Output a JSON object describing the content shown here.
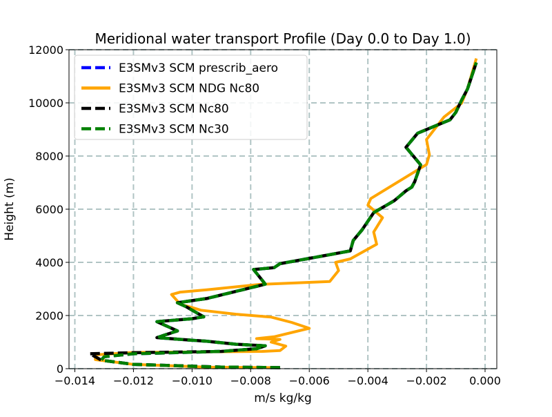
{
  "chart_data": {
    "type": "line",
    "title": "Meridional water transport Profile (Day 0.0 to Day 1.0)",
    "xlabel": "m/s kg/kg",
    "ylabel": "Height (m)",
    "xlim": [
      -0.0142,
      0.0004
    ],
    "ylim": [
      0,
      12000
    ],
    "xticks": [
      -0.014,
      -0.012,
      -0.01,
      -0.008,
      -0.006,
      -0.004,
      -0.002,
      0.0
    ],
    "xtick_labels": [
      "−0.014",
      "−0.012",
      "−0.010",
      "−0.008",
      "−0.006",
      "−0.004",
      "−0.002",
      "0.000"
    ],
    "yticks": [
      0,
      2000,
      4000,
      6000,
      8000,
      10000,
      12000
    ],
    "ytick_labels": [
      "0",
      "2000",
      "4000",
      "6000",
      "8000",
      "10000",
      "12000"
    ],
    "grid": true,
    "legend_position": "top-left",
    "series": [
      {
        "name": "E3SMv3 SCM prescrib_aero",
        "color": "#0000ff",
        "style": "dashed",
        "x": [
          -0.007,
          -0.009,
          -0.012,
          -0.0131,
          -0.013,
          -0.012,
          -0.009,
          -0.0078,
          -0.0075,
          -0.0085,
          -0.0095,
          -0.0105,
          -0.0112,
          -0.0105,
          -0.0112,
          -0.01,
          -0.0096,
          -0.0102,
          -0.0105,
          -0.0095,
          -0.0075,
          -0.0079,
          -0.0072,
          -0.007,
          -0.0055,
          -0.0046,
          -0.0045,
          -0.0042,
          -0.0038,
          -0.0031,
          -0.0027,
          -0.0025,
          -0.0024,
          -0.0022,
          -0.0027,
          -0.0023,
          -0.0012,
          -0.001,
          -0.0008,
          -0.0006,
          -0.0003
        ],
        "y": [
          40,
          60,
          160,
          320,
          450,
          560,
          650,
          750,
          860,
          920,
          1030,
          1110,
          1170,
          1420,
          1770,
          1880,
          1950,
          2330,
          2480,
          2640,
          3180,
          3730,
          3800,
          3950,
          4250,
          4430,
          4820,
          5220,
          5870,
          6320,
          6690,
          6830,
          7040,
          7670,
          8330,
          8860,
          9360,
          9640,
          10100,
          10520,
          11520
        ]
      },
      {
        "name": "E3SMv3 SCM NDG Nc80",
        "color": "#ffa500",
        "style": "solid",
        "x": [
          -0.007,
          -0.0095,
          -0.012,
          -0.0133,
          -0.0133,
          -0.012,
          -0.0076,
          -0.007,
          -0.0068,
          -0.0073,
          -0.007,
          -0.0078,
          -0.0072,
          -0.006,
          -0.0066,
          -0.0073,
          -0.0085,
          -0.0097,
          -0.01,
          -0.0104,
          -0.0107,
          -0.0104,
          -0.0095,
          -0.0077,
          -0.0053,
          -0.005,
          -0.0051,
          -0.0046,
          -0.0037,
          -0.0038,
          -0.0035,
          -0.004,
          -0.0039,
          -0.002,
          -0.0019,
          -0.002,
          -0.0014,
          -0.0008,
          -0.0006,
          -0.0003
        ],
        "y": [
          40,
          60,
          160,
          340,
          520,
          610,
          650,
          680,
          850,
          1000,
          1100,
          1130,
          1200,
          1520,
          1740,
          1940,
          2050,
          2200,
          2300,
          2420,
          2790,
          2880,
          2970,
          3170,
          3280,
          3690,
          4000,
          4130,
          4680,
          5140,
          5680,
          6150,
          6400,
          7680,
          8050,
          8620,
          9470,
          9990,
          10530,
          11670
        ]
      },
      {
        "name": "E3SMv3 SCM Nc80",
        "color": "#000000",
        "style": "dashed",
        "x": [
          -0.007,
          -0.009,
          -0.012,
          -0.0131,
          -0.0133,
          -0.0135,
          -0.012,
          -0.009,
          -0.0078,
          -0.0075,
          -0.0085,
          -0.0095,
          -0.0105,
          -0.0112,
          -0.0105,
          -0.0112,
          -0.01,
          -0.0096,
          -0.0102,
          -0.0105,
          -0.0095,
          -0.0075,
          -0.0079,
          -0.0072,
          -0.007,
          -0.0055,
          -0.0046,
          -0.0045,
          -0.0042,
          -0.0038,
          -0.0031,
          -0.0027,
          -0.0025,
          -0.0024,
          -0.0022,
          -0.0027,
          -0.0023,
          -0.0012,
          -0.001,
          -0.0008,
          -0.0006,
          -0.0003
        ],
        "y": [
          40,
          60,
          160,
          320,
          450,
          560,
          600,
          650,
          750,
          860,
          920,
          1030,
          1110,
          1170,
          1420,
          1770,
          1880,
          1950,
          2330,
          2480,
          2640,
          3180,
          3730,
          3800,
          3950,
          4250,
          4430,
          4820,
          5220,
          5870,
          6320,
          6690,
          6830,
          7040,
          7670,
          8330,
          8860,
          9360,
          9640,
          10100,
          10520,
          11520
        ]
      },
      {
        "name": "E3SMv3 SCM Nc30",
        "color": "#008000",
        "style": "dashed",
        "x": [
          -0.007,
          -0.009,
          -0.012,
          -0.0131,
          -0.013,
          -0.012,
          -0.009,
          -0.0078,
          -0.0075,
          -0.0085,
          -0.0095,
          -0.0105,
          -0.0112,
          -0.0105,
          -0.0112,
          -0.01,
          -0.0096,
          -0.0102,
          -0.0105,
          -0.0095,
          -0.0075,
          -0.0079,
          -0.0072,
          -0.007,
          -0.0055,
          -0.0046,
          -0.0045,
          -0.0042,
          -0.0038,
          -0.0031,
          -0.0027,
          -0.0025,
          -0.0024,
          -0.0022,
          -0.0027,
          -0.0023,
          -0.0012,
          -0.001,
          -0.0008,
          -0.0006,
          -0.0003
        ],
        "y": [
          40,
          60,
          160,
          320,
          450,
          560,
          650,
          750,
          860,
          920,
          1030,
          1110,
          1170,
          1420,
          1770,
          1880,
          1950,
          2330,
          2480,
          2640,
          3180,
          3730,
          3800,
          3950,
          4250,
          4430,
          4820,
          5220,
          5870,
          6320,
          6690,
          6830,
          7040,
          7670,
          8330,
          8860,
          9360,
          9640,
          10100,
          10520,
          11520
        ]
      }
    ]
  }
}
